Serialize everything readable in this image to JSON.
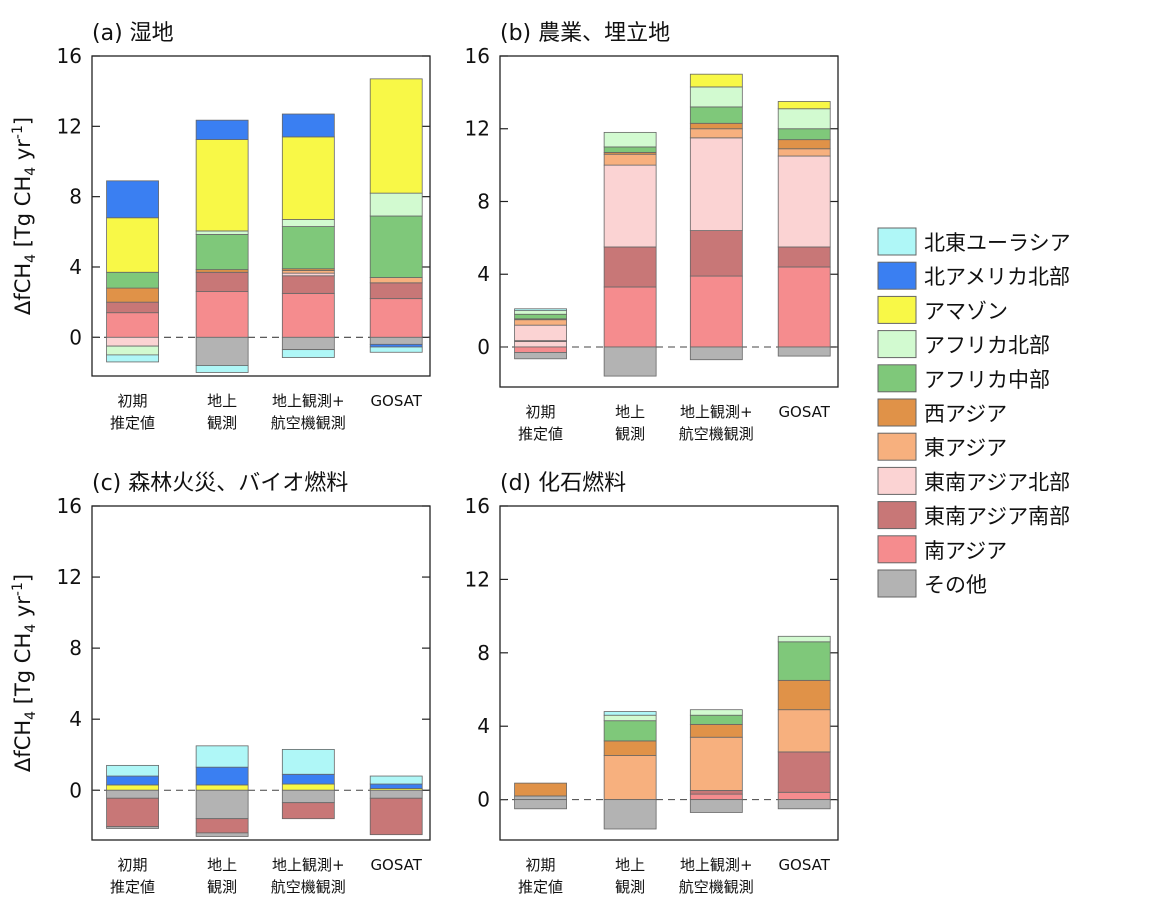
{
  "ylabel": {
    "main": "ΔfCH",
    "sub": "4",
    "rest1": " [Tg CH",
    "sub2": "4",
    "rest2": " yr",
    "sup": "-1",
    "rest3": "]"
  },
  "legend": [
    {
      "key": "ne_eurasia",
      "label": "北東ユーラシア",
      "color": "#AFF7F7"
    },
    {
      "key": "north_america",
      "label": "北アメリカ北部",
      "color": "#3A7FF2"
    },
    {
      "key": "amazon",
      "label": "アマゾン",
      "color": "#F8F847"
    },
    {
      "key": "n_africa",
      "label": "アフリカ北部",
      "color": "#D2FAD0"
    },
    {
      "key": "c_africa",
      "label": "アフリカ中部",
      "color": "#7FC87A"
    },
    {
      "key": "w_asia",
      "label": "西アジア",
      "color": "#E09248"
    },
    {
      "key": "e_asia",
      "label": "東アジア",
      "color": "#F7B07E"
    },
    {
      "key": "n_se_asia",
      "label": "東南アジア北部",
      "color": "#FBD3D3"
    },
    {
      "key": "s_se_asia",
      "label": "東南アジア南部",
      "color": "#C87777"
    },
    {
      "key": "s_asia",
      "label": "南アジア",
      "color": "#F58C8E"
    },
    {
      "key": "other",
      "label": "その他",
      "color": "#B3B3B3"
    }
  ],
  "chart_data": [
    {
      "type": "bar",
      "stacked": true,
      "title": "(a) 湿地",
      "ylim": [
        -2.2,
        16
      ],
      "yticks": [
        0,
        4,
        8,
        12,
        16
      ],
      "categories": [
        [
          "初期",
          "推定値"
        ],
        [
          "地上",
          "観測"
        ],
        [
          "地上観測+",
          "航空機観測"
        ],
        [
          "GOSAT"
        ]
      ],
      "stacks": [
        {
          "pos": [
            [
              "s_asia",
              1.4
            ],
            [
              "s_se_asia",
              0.6
            ],
            [
              "w_asia",
              0.8
            ],
            [
              "c_africa",
              0.9
            ],
            [
              "amazon",
              3.1
            ],
            [
              "north_america",
              2.1
            ]
          ],
          "neg": [
            [
              "n_se_asia",
              -0.5
            ],
            [
              "n_africa",
              -0.5
            ],
            [
              "ne_eurasia",
              -0.4
            ]
          ]
        },
        {
          "pos": [
            [
              "s_asia",
              2.6
            ],
            [
              "s_se_asia",
              1.1
            ],
            [
              "w_asia",
              0.15
            ],
            [
              "c_africa",
              2.0
            ],
            [
              "n_africa",
              0.2
            ],
            [
              "amazon",
              5.2
            ],
            [
              "north_america",
              1.1
            ]
          ],
          "neg": [
            [
              "other",
              -1.6
            ],
            [
              "ne_eurasia",
              -0.4
            ]
          ]
        },
        {
          "pos": [
            [
              "s_asia",
              2.5
            ],
            [
              "s_se_asia",
              1.0
            ],
            [
              "n_se_asia",
              0.15
            ],
            [
              "e_asia",
              0.15
            ],
            [
              "w_asia",
              0.1
            ],
            [
              "c_africa",
              2.4
            ],
            [
              "n_africa",
              0.4
            ],
            [
              "amazon",
              4.7
            ],
            [
              "north_america",
              1.3
            ]
          ],
          "neg": [
            [
              "other",
              -0.7
            ],
            [
              "ne_eurasia",
              -0.45
            ]
          ]
        },
        {
          "pos": [
            [
              "s_asia",
              2.2
            ],
            [
              "s_se_asia",
              0.9
            ],
            [
              "e_asia",
              0.3
            ],
            [
              "c_africa",
              3.5
            ],
            [
              "n_africa",
              1.3
            ],
            [
              "amazon",
              6.5
            ]
          ],
          "neg": [
            [
              "other",
              -0.4
            ],
            [
              "north_america",
              -0.15
            ],
            [
              "ne_eurasia",
              -0.3
            ]
          ]
        }
      ]
    },
    {
      "type": "bar",
      "stacked": true,
      "title": "(b) 農業、埋立地",
      "ylim": [
        -2.2,
        16
      ],
      "yticks": [
        0,
        4,
        8,
        12,
        16
      ],
      "categories": [
        [
          "初期",
          "推定値"
        ],
        [
          "地上",
          "観測"
        ],
        [
          "地上観測+",
          "航空機観測"
        ],
        [
          "GOSAT"
        ]
      ],
      "stacks": [
        {
          "pos": [
            [
              "n_se_asia",
              0.3
            ],
            [
              "s_se_asia",
              0.05
            ],
            [
              "n_se_asia",
              0.85
            ],
            [
              "e_asia",
              0.3
            ],
            [
              "w_asia",
              0.05
            ],
            [
              "c_africa",
              0.25
            ],
            [
              "n_africa",
              0.2
            ],
            [
              "ne_eurasia",
              0.1
            ]
          ],
          "neg": [
            [
              "s_asia",
              -0.3
            ],
            [
              "other",
              -0.35
            ]
          ]
        },
        {
          "pos": [
            [
              "s_asia",
              3.3
            ],
            [
              "s_se_asia",
              2.2
            ],
            [
              "n_se_asia",
              4.5
            ],
            [
              "e_asia",
              0.6
            ],
            [
              "w_asia",
              0.1
            ],
            [
              "c_africa",
              0.3
            ],
            [
              "n_africa",
              0.8
            ]
          ],
          "neg": [
            [
              "other",
              -1.6
            ]
          ]
        },
        {
          "pos": [
            [
              "s_asia",
              3.9
            ],
            [
              "s_se_asia",
              2.5
            ],
            [
              "n_se_asia",
              5.1
            ],
            [
              "e_asia",
              0.5
            ],
            [
              "w_asia",
              0.3
            ],
            [
              "c_africa",
              0.9
            ],
            [
              "n_africa",
              1.1
            ],
            [
              "amazon",
              0.7
            ]
          ],
          "neg": [
            [
              "other",
              -0.7
            ]
          ]
        },
        {
          "pos": [
            [
              "s_asia",
              4.4
            ],
            [
              "s_se_asia",
              1.1
            ],
            [
              "n_se_asia",
              5.0
            ],
            [
              "e_asia",
              0.4
            ],
            [
              "w_asia",
              0.5
            ],
            [
              "c_africa",
              0.6
            ],
            [
              "n_africa",
              1.1
            ],
            [
              "amazon",
              0.4
            ]
          ],
          "neg": [
            [
              "other",
              -0.5
            ]
          ]
        }
      ]
    },
    {
      "type": "bar",
      "stacked": true,
      "title": "(c) 森林火災、バイオ燃料",
      "ylim": [
        -2.8,
        16
      ],
      "yticks": [
        0,
        4,
        8,
        12,
        16
      ],
      "categories": [
        [
          "初期",
          "推定値"
        ],
        [
          "地上",
          "観測"
        ],
        [
          "地上観測+",
          "航空機観測"
        ],
        [
          "GOSAT"
        ]
      ],
      "stacks": [
        {
          "pos": [
            [
              "amazon",
              0.3
            ],
            [
              "north_america",
              0.5
            ],
            [
              "ne_eurasia",
              0.6
            ]
          ],
          "neg": [
            [
              "other",
              -0.45
            ],
            [
              "s_se_asia",
              -1.6
            ],
            [
              "other",
              -0.1
            ]
          ]
        },
        {
          "pos": [
            [
              "amazon",
              0.3
            ],
            [
              "north_america",
              1.0
            ],
            [
              "ne_eurasia",
              1.2
            ]
          ],
          "neg": [
            [
              "other",
              -1.6
            ],
            [
              "s_se_asia",
              -0.8
            ],
            [
              "other",
              -0.2
            ]
          ]
        },
        {
          "pos": [
            [
              "amazon",
              0.35
            ],
            [
              "north_america",
              0.55
            ],
            [
              "ne_eurasia",
              1.4
            ]
          ],
          "neg": [
            [
              "other",
              -0.7
            ],
            [
              "s_se_asia",
              -0.9
            ]
          ]
        },
        {
          "pos": [
            [
              "amazon",
              0.1
            ],
            [
              "north_america",
              0.25
            ],
            [
              "ne_eurasia",
              0.45
            ]
          ],
          "neg": [
            [
              "other",
              -0.45
            ],
            [
              "s_se_asia",
              -2.05
            ]
          ]
        }
      ]
    },
    {
      "type": "bar",
      "stacked": true,
      "title": "(d) 化石燃料",
      "ylim": [
        -2.2,
        16
      ],
      "yticks": [
        0,
        4,
        8,
        12,
        16
      ],
      "categories": [
        [
          "初期",
          "推定値"
        ],
        [
          "地上",
          "観測"
        ],
        [
          "地上観測+",
          "航空機観測"
        ],
        [
          "GOSAT"
        ]
      ],
      "stacks": [
        {
          "pos": [
            [
              "other",
              0.2
            ],
            [
              "w_asia",
              0.7
            ]
          ],
          "neg": [
            [
              "other",
              -0.5
            ]
          ]
        },
        {
          "pos": [
            [
              "e_asia",
              2.4
            ],
            [
              "w_asia",
              0.8
            ],
            [
              "c_africa",
              1.1
            ],
            [
              "n_africa",
              0.3
            ],
            [
              "ne_eurasia",
              0.2
            ]
          ],
          "neg": [
            [
              "other",
              -1.6
            ]
          ]
        },
        {
          "pos": [
            [
              "s_asia",
              0.3
            ],
            [
              "s_se_asia",
              0.2
            ],
            [
              "e_asia",
              2.9
            ],
            [
              "w_asia",
              0.7
            ],
            [
              "c_africa",
              0.5
            ],
            [
              "n_africa",
              0.3
            ]
          ],
          "neg": [
            [
              "other",
              -0.7
            ]
          ]
        },
        {
          "pos": [
            [
              "s_asia",
              0.4
            ],
            [
              "s_se_asia",
              2.2
            ],
            [
              "e_asia",
              2.3
            ],
            [
              "w_asia",
              1.6
            ],
            [
              "c_africa",
              2.1
            ],
            [
              "n_africa",
              0.3
            ]
          ],
          "neg": [
            [
              "other",
              -0.5
            ]
          ]
        }
      ]
    }
  ]
}
